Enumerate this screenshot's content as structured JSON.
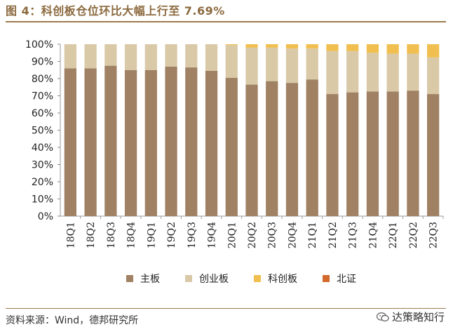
{
  "title": "图 4：科创板仓位环比大幅上行至 7.69%",
  "source": "资料来源：Wind，德邦研究所",
  "watermark": "达策略知行",
  "chart_data": {
    "type": "bar",
    "stacked": true,
    "title": "科创板仓位环比大幅上行至 7.69%",
    "categories": [
      "18Q1",
      "18Q2",
      "18Q3",
      "18Q4",
      "19Q1",
      "19Q2",
      "19Q3",
      "19Q4",
      "20Q1",
      "20Q2",
      "20Q3",
      "20Q4",
      "21Q1",
      "21Q2",
      "21Q3",
      "21Q4",
      "22Q1",
      "22Q2",
      "22Q3"
    ],
    "ylim": [
      0,
      100
    ],
    "yticks": [
      "0%",
      "10%",
      "20%",
      "30%",
      "40%",
      "50%",
      "60%",
      "70%",
      "80%",
      "90%",
      "100%"
    ],
    "legend_position": "bottom",
    "series": [
      {
        "name": "主板",
        "color": "#a08163",
        "values": [
          86,
          86,
          87.5,
          85,
          85,
          87,
          86.5,
          84.5,
          80.5,
          76.5,
          78.5,
          77.5,
          79.5,
          71,
          72,
          72.5,
          72.5,
          73,
          71
        ]
      },
      {
        "name": "创业板",
        "color": "#d9c9a7",
        "values": [
          14,
          14,
          12.5,
          15,
          15,
          13,
          13.5,
          15.5,
          19,
          21.5,
          19.5,
          20,
          18,
          25,
          24,
          22.5,
          22,
          21.5,
          21.3
        ]
      },
      {
        "name": "科创板",
        "color": "#f0bf4f",
        "values": [
          0,
          0,
          0,
          0,
          0,
          0,
          0,
          0,
          0.5,
          2,
          2,
          2.5,
          2.5,
          4,
          4,
          5,
          5.5,
          5.5,
          7.69
        ]
      },
      {
        "name": "北证",
        "color": "#d4692b",
        "values": [
          0,
          0,
          0,
          0,
          0,
          0,
          0,
          0,
          0,
          0,
          0,
          0,
          0,
          0,
          0,
          0,
          0,
          0,
          0.01
        ]
      }
    ]
  }
}
